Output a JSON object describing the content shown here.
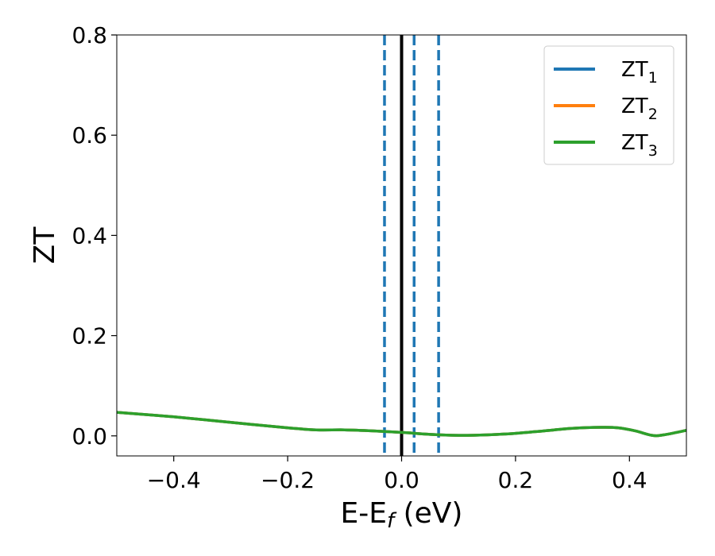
{
  "chart_data": {
    "type": "line",
    "xlabel": "E-E",
    "xlabel_subscript": "f",
    "xlabel_unit": " (eV)",
    "ylabel": "ZT",
    "xlim": [
      -0.5,
      0.5
    ],
    "ylim": [
      -0.04,
      0.8
    ],
    "xticks": [
      -0.4,
      -0.2,
      0.0,
      0.2,
      0.4
    ],
    "xtick_labels": [
      "−0.4",
      "−0.2",
      "0.0",
      "0.2",
      "0.4"
    ],
    "yticks": [
      0.0,
      0.2,
      0.4,
      0.6,
      0.8
    ],
    "ytick_labels": [
      "0.0",
      "0.2",
      "0.4",
      "0.6",
      "0.8"
    ],
    "grid": false,
    "legend_position": "top-right",
    "series": [
      {
        "name": "ZT",
        "subscript": "1",
        "color": "#1f77b4",
        "x": [
          -0.5,
          -0.4,
          -0.3,
          -0.2,
          -0.15,
          -0.1,
          -0.05,
          0.0,
          0.05,
          0.1,
          0.15,
          0.2,
          0.25,
          0.3,
          0.35,
          0.38,
          0.41,
          0.44,
          0.46,
          0.5
        ],
        "y": [
          0.047,
          0.038,
          0.027,
          0.016,
          0.012,
          0.012,
          0.01,
          0.007,
          0.003,
          0.001,
          0.002,
          0.005,
          0.01,
          0.015,
          0.017,
          0.016,
          0.01,
          0.001,
          0.002,
          0.011
        ]
      },
      {
        "name": "ZT",
        "subscript": "2",
        "color": "#ff7f0e",
        "x": [
          -0.5,
          -0.4,
          -0.3,
          -0.2,
          -0.15,
          -0.1,
          -0.05,
          0.0,
          0.05,
          0.1,
          0.15,
          0.2,
          0.25,
          0.3,
          0.35,
          0.38,
          0.41,
          0.44,
          0.46,
          0.5
        ],
        "y": [
          0.047,
          0.038,
          0.027,
          0.016,
          0.012,
          0.012,
          0.01,
          0.007,
          0.003,
          0.001,
          0.002,
          0.005,
          0.01,
          0.015,
          0.017,
          0.016,
          0.01,
          0.001,
          0.002,
          0.011
        ]
      },
      {
        "name": "ZT",
        "subscript": "3",
        "color": "#2ca02c",
        "x": [
          -0.5,
          -0.4,
          -0.3,
          -0.2,
          -0.15,
          -0.1,
          -0.05,
          0.0,
          0.05,
          0.1,
          0.15,
          0.2,
          0.25,
          0.3,
          0.35,
          0.38,
          0.41,
          0.44,
          0.46,
          0.5
        ],
        "y": [
          0.047,
          0.038,
          0.027,
          0.016,
          0.012,
          0.012,
          0.01,
          0.007,
          0.003,
          0.001,
          0.002,
          0.005,
          0.01,
          0.015,
          0.017,
          0.016,
          0.01,
          0.001,
          0.002,
          0.011
        ]
      }
    ],
    "vertical_lines": [
      {
        "x": -0.03,
        "style": "dashed",
        "color": "#1f77b4"
      },
      {
        "x": 0.0,
        "style": "solid",
        "color": "#000000"
      },
      {
        "x": 0.022,
        "style": "dashed",
        "color": "#1f77b4"
      },
      {
        "x": 0.065,
        "style": "dashed",
        "color": "#1f77b4"
      }
    ]
  }
}
